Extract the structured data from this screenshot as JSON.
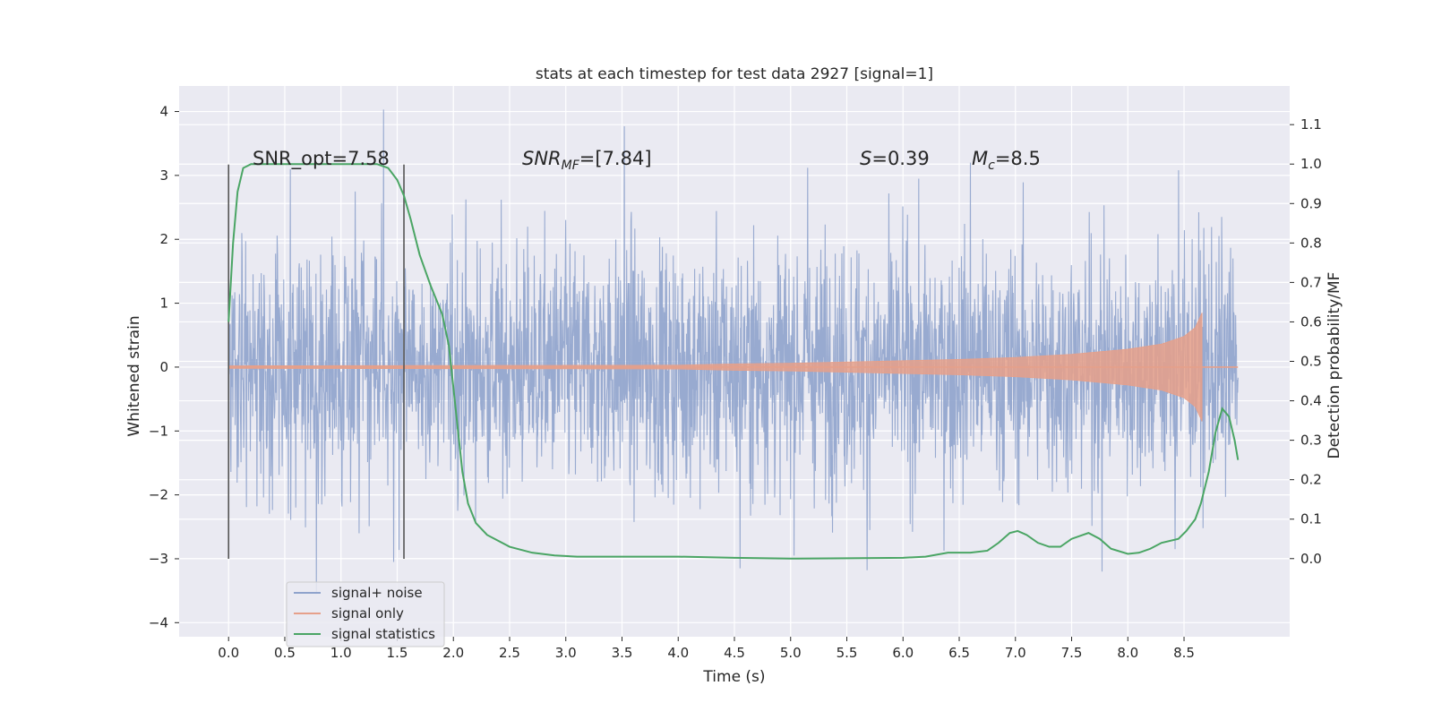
{
  "chart_data": {
    "type": "line",
    "title": "stats at each timestep for test data 2927 [signal=1]",
    "xlabel": "Time (s)",
    "ylabel_left": "Whitened strain",
    "ylabel_right": "Detection probability/MF",
    "xlim": [
      -0.44,
      9.44
    ],
    "ylim_left": [
      -4.22,
      4.4
    ],
    "ylim_right": [
      -0.198,
      1.198
    ],
    "x_ticks": [
      0.0,
      0.5,
      1.0,
      1.5,
      2.0,
      2.5,
      3.0,
      3.5,
      4.0,
      4.5,
      5.0,
      5.5,
      6.0,
      6.5,
      7.0,
      7.5,
      8.0,
      8.5
    ],
    "x_tick_labels": [
      "0.0",
      "0.5",
      "1.0",
      "1.5",
      "2.0",
      "2.5",
      "3.0",
      "3.5",
      "4.0",
      "4.5",
      "5.0",
      "5.5",
      "6.0",
      "6.5",
      "7.0",
      "7.5",
      "8.0",
      "8.5"
    ],
    "y_ticks_left": [
      4,
      3,
      2,
      1,
      0,
      -1,
      -2,
      -3,
      -4
    ],
    "y_tick_labels_left": [
      "4",
      "3",
      "2",
      "1",
      "0",
      "−1",
      "−2",
      "−3",
      "−4"
    ],
    "y_ticks_right": [
      1.1,
      1.0,
      0.9,
      0.8,
      0.7,
      0.6,
      0.5,
      0.4,
      0.3,
      0.2,
      0.1,
      0.0
    ],
    "y_tick_labels_right": [
      "1.1",
      "1.0",
      "0.9",
      "0.8",
      "0.7",
      "0.6",
      "0.5",
      "0.4",
      "0.3",
      "0.2",
      "0.1",
      "0.0"
    ],
    "grid": true,
    "legend_position": "lower-left",
    "annotations": {
      "snr_opt": "SNR_opt=7.58",
      "snr_mf_base": "SNR",
      "snr_mf_sub": "MF",
      "snr_mf_value": "=[7.84]",
      "s_symbol": "S",
      "s_value": "=0.39",
      "mc_symbol": "M",
      "mc_sub": "c",
      "mc_value": "=8.5"
    },
    "vertical_markers": [
      {
        "x": 0.0,
        "y_range": [
          -3.0,
          3.17
        ]
      },
      {
        "x": 1.56,
        "y_range": [
          -3.0,
          3.17
        ]
      }
    ],
    "series": [
      {
        "name": "signal+ noise",
        "axis": "left",
        "color": "#8fa3cc",
        "x_range": [
          0.0,
          8.98
        ],
        "typical_amplitude": 1.3,
        "peak_up": [
          {
            "x": 1.38,
            "y": 4.03
          },
          {
            "x": 3.52,
            "y": 3.77
          },
          {
            "x": 0.55,
            "y": 3.1
          },
          {
            "x": 5.15,
            "y": 3.12
          },
          {
            "x": 6.6,
            "y": 3.2
          },
          {
            "x": 8.45,
            "y": 3.08
          }
        ],
        "peak_down": [
          {
            "x": 0.78,
            "y": -3.55
          },
          {
            "x": 1.47,
            "y": -3.05
          },
          {
            "x": 4.55,
            "y": -3.15
          },
          {
            "x": 5.68,
            "y": -3.18
          },
          {
            "x": 7.77,
            "y": -3.2
          },
          {
            "x": 8.42,
            "y": -2.85
          }
        ]
      },
      {
        "name": "signal only",
        "axis": "left",
        "color": "#e6a08a",
        "x": [
          0.0,
          4.0,
          4.5,
          5.0,
          5.5,
          6.0,
          6.5,
          7.0,
          7.5,
          8.0,
          8.3,
          8.5,
          8.6,
          8.66
        ],
        "envelope": [
          0.02,
          0.03,
          0.05,
          0.06,
          0.08,
          0.1,
          0.12,
          0.15,
          0.2,
          0.28,
          0.36,
          0.48,
          0.62,
          0.85
        ],
        "tail_to": 8.98
      },
      {
        "name": "signal statistics",
        "axis": "right",
        "color": "#4aa564",
        "x": [
          0.0,
          0.04,
          0.08,
          0.13,
          0.2,
          0.3,
          0.5,
          0.8,
          1.0,
          1.2,
          1.32,
          1.42,
          1.5,
          1.56,
          1.62,
          1.7,
          1.8,
          1.9,
          1.96,
          2.02,
          2.08,
          2.13,
          2.2,
          2.3,
          2.5,
          2.7,
          2.9,
          3.1,
          3.5,
          4.0,
          4.5,
          5.0,
          5.5,
          6.0,
          6.2,
          6.4,
          6.5,
          6.6,
          6.75,
          6.85,
          6.95,
          7.02,
          7.1,
          7.2,
          7.3,
          7.4,
          7.5,
          7.6,
          7.65,
          7.75,
          7.85,
          8.0,
          8.1,
          8.2,
          8.3,
          8.45,
          8.52,
          8.6,
          8.65,
          8.72,
          8.78,
          8.84,
          8.9,
          8.95,
          8.98
        ],
        "values": [
          0.6,
          0.8,
          0.93,
          0.99,
          1.0,
          1.0,
          1.0,
          1.0,
          1.0,
          1.0,
          1.0,
          0.99,
          0.96,
          0.92,
          0.86,
          0.77,
          0.69,
          0.62,
          0.54,
          0.38,
          0.22,
          0.14,
          0.09,
          0.06,
          0.03,
          0.015,
          0.008,
          0.005,
          0.005,
          0.005,
          0.002,
          0.0,
          0.001,
          0.002,
          0.005,
          0.015,
          0.015,
          0.015,
          0.02,
          0.04,
          0.065,
          0.07,
          0.06,
          0.04,
          0.03,
          0.03,
          0.05,
          0.06,
          0.065,
          0.05,
          0.025,
          0.012,
          0.015,
          0.025,
          0.04,
          0.05,
          0.07,
          0.1,
          0.14,
          0.22,
          0.32,
          0.38,
          0.36,
          0.3,
          0.25
        ]
      }
    ]
  }
}
